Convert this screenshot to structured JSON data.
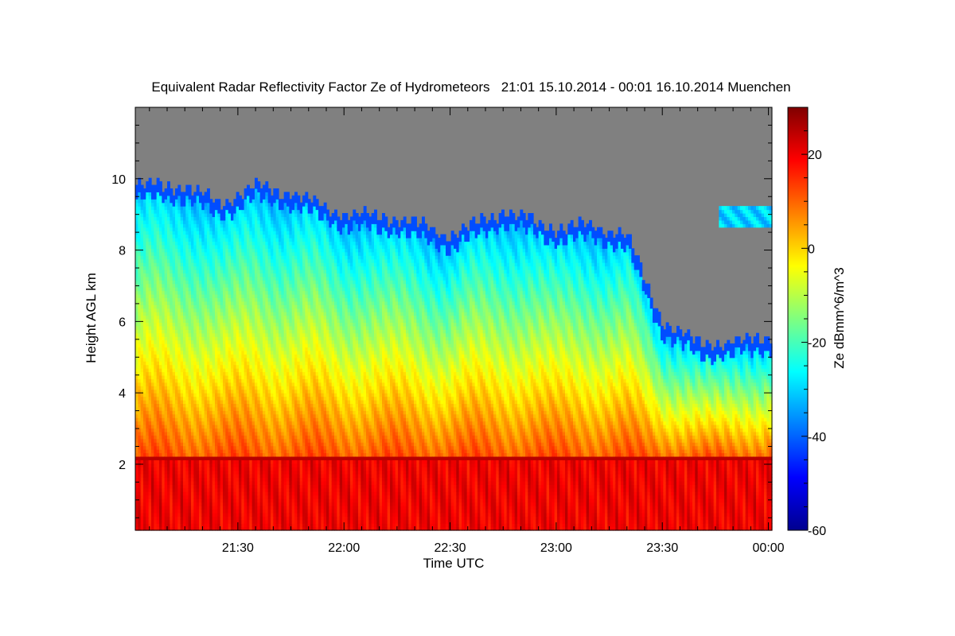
{
  "chart_data": {
    "type": "heatmap",
    "title": "Equivalent Radar Reflectivity Factor Ze of Hydrometeors   21:01 15.10.2014 - 00:01 16.10.2014 Muenchen",
    "xlabel": "Time UTC",
    "ylabel": "Height AGL km",
    "colorbar_label": "Ze dBmm^6/m^3",
    "x_range": [
      "21:01",
      "00:01"
    ],
    "y_range_km": [
      0.15,
      12
    ],
    "x_ticks": [
      "21:30",
      "22:00",
      "22:30",
      "23:00",
      "23:30",
      "00:00"
    ],
    "y_ticks": [
      2,
      4,
      6,
      8,
      10
    ],
    "color_range": [
      -60,
      30
    ],
    "colorbar_ticks": [
      20,
      0,
      -20,
      -40,
      -60
    ],
    "colormap": "jet",
    "no_data_color": "#808080",
    "features": {
      "cloud_top_km": [
        [
          "21:01",
          9.8
        ],
        [
          "21:15",
          9.8
        ],
        [
          "21:25",
          9.3
        ],
        [
          "21:35",
          9.8
        ],
        [
          "21:45",
          9.6
        ],
        [
          "22:00",
          9.0
        ],
        [
          "22:15",
          8.9
        ],
        [
          "22:30",
          8.4
        ],
        [
          "22:45",
          9.1
        ],
        [
          "23:00",
          8.6
        ],
        [
          "23:10",
          8.7
        ],
        [
          "23:20",
          8.4
        ],
        [
          "23:25",
          7.2
        ],
        [
          "23:30",
          6.0
        ],
        [
          "23:40",
          5.4
        ],
        [
          "23:50",
          5.4
        ],
        [
          "00:01",
          5.6
        ]
      ],
      "melting_layer_km": 2.1,
      "upper_cloud_patch": {
        "time": [
          "23:46",
          "00:01"
        ],
        "height_km": [
          8.6,
          9.2
        ]
      }
    }
  }
}
